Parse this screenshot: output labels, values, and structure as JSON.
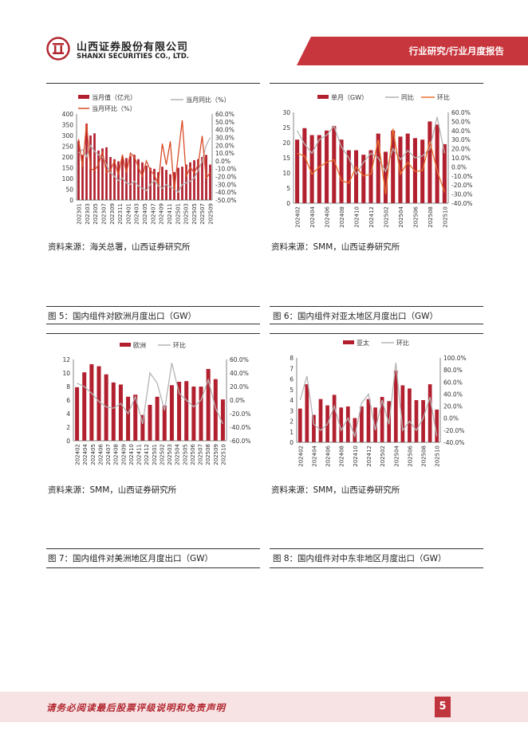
{
  "header": {
    "company_cn": "山西证券股份有限公司",
    "company_en": "SHANXI SECURITIES CO., LTD.",
    "report_type": "行业研究/行业月度报告"
  },
  "colors": {
    "brand": "#b22831",
    "bar": "#b2202f",
    "line_grey": "#b4b4b4",
    "line_orange": "#e8702a",
    "line_red": "#d84a26"
  },
  "figures": [
    {
      "source": "资料来源：海关总署，山西证券研究所",
      "caption": "图 5：国内组件对欧洲月度出口（GW）"
    },
    {
      "source": "资料来源：SMM，山西证券研究所",
      "caption": "图 6：国内组件对亚太地区月度出口（GW）"
    },
    {
      "source": "资料来源：SMM，山西证券研究所",
      "caption": "图 7：国内组件对美洲地区月度出口（GW）"
    },
    {
      "source": "资料来源：SMM，山西证券研究所",
      "caption": "图 8：国内组件对中东非地区月度出口（GW）"
    }
  ],
  "footer": {
    "disclaimer": "请务必阅读最后股票评级说明和免责声明",
    "page_number": "5"
  },
  "chart_data": [
    {
      "type": "bar",
      "legend": [
        "当月值（亿元）",
        "当月同比（%）",
        "当月环比（%）"
      ],
      "x_tick_labels": [
        "202301",
        "202303",
        "202305",
        "202307",
        "202309",
        "202311",
        "202401",
        "202403",
        "202405",
        "202407",
        "202409",
        "202411",
        "202501",
        "202503",
        "202505",
        "202507",
        "202509"
      ],
      "values": [
        275,
        210,
        355,
        300,
        310,
        230,
        240,
        245,
        200,
        190,
        180,
        200,
        195,
        205,
        210,
        190,
        175,
        160,
        150,
        145,
        130,
        155,
        140,
        120,
        130,
        150,
        155,
        165,
        175,
        185,
        190,
        200,
        210,
        165
      ],
      "series": [
        {
          "name": "当月同比（%）",
          "values": [
            10,
            15,
            5,
            20,
            12,
            8,
            5,
            -5,
            -15,
            -20,
            -25,
            -22,
            -28,
            -30,
            -26,
            -32,
            -35,
            -38,
            -30,
            -25,
            -32,
            -35,
            -30,
            -33,
            -36,
            -40,
            -30,
            -28,
            -26,
            -22,
            -12,
            0,
            20,
            30
          ]
        },
        {
          "name": "当月环比（%）",
          "values": [
            28,
            -8,
            48,
            -10,
            -12,
            -5,
            12,
            -15,
            -12,
            0,
            -18,
            8,
            -15,
            10,
            5,
            -8,
            -20,
            0,
            -12,
            -18,
            -30,
            22,
            -5,
            25,
            -38,
            8,
            52,
            -20,
            -8,
            -15,
            -5,
            32,
            -22,
            -15
          ]
        }
      ],
      "ylim": [
        0,
        400
      ],
      "y_ticks": [
        0,
        50,
        100,
        150,
        200,
        250,
        300,
        350,
        400
      ],
      "y2lim": [
        -50,
        60
      ],
      "y2_ticks": [
        "60.0%",
        "50.0%",
        "40.0%",
        "30.0%",
        "20.0%",
        "10.0%",
        "0.0%",
        "-10.0%",
        "-20.0%",
        "-30.0%",
        "-40.0%",
        "-50.0%"
      ]
    },
    {
      "type": "bar",
      "legend": [
        "单月（GW）",
        "同比",
        "环比"
      ],
      "x_tick_labels": [
        "202402",
        "202404",
        "202406",
        "202408",
        "202410",
        "202412",
        "202502",
        "202504",
        "202506",
        "202508",
        "202510"
      ],
      "values": [
        21,
        24.8,
        22.5,
        22.5,
        24,
        25.5,
        21,
        17.5,
        17.5,
        16,
        17.5,
        23,
        17,
        24,
        22,
        23,
        21.5,
        21,
        27,
        26,
        19.5
      ],
      "series": [
        {
          "name": "同比",
          "values": [
            40,
            25,
            15,
            30,
            35,
            45,
            22,
            10,
            -8,
            5,
            15,
            10,
            -5,
            20,
            8,
            18,
            10,
            12,
            20,
            55,
            15
          ]
        },
        {
          "name": "环比",
          "values": [
            15,
            12,
            -8,
            0,
            5,
            8,
            -15,
            -18,
            0,
            -10,
            -8,
            30,
            -30,
            42,
            -8,
            5,
            -5,
            -4,
            28,
            -4,
            -28
          ]
        }
      ],
      "ylim": [
        0,
        30
      ],
      "y_ticks": [
        0,
        5,
        10,
        15,
        20,
        25,
        30
      ],
      "y2lim": [
        -40,
        60
      ],
      "y2_ticks": [
        "60.0%",
        "50.0%",
        "40.0%",
        "30.0%",
        "20.0%",
        "10.0%",
        "0.0%",
        "-10.0%",
        "-20.0%",
        "-30.0%",
        "-40.0%"
      ]
    },
    {
      "type": "bar",
      "legend": [
        "欧洲",
        "环比"
      ],
      "x_tick_labels": [
        "202402",
        "202404",
        "202405",
        "202406",
        "202407",
        "202408",
        "202409",
        "202410",
        "202411",
        "202412",
        "202501",
        "202502",
        "202503",
        "202504",
        "202505",
        "202506",
        "202507",
        "202508",
        "202509",
        "202510"
      ],
      "values": [
        7.9,
        10.1,
        11.3,
        11,
        9.8,
        8.6,
        8.3,
        6.5,
        6.8,
        3.8,
        5.3,
        6.5,
        5.2,
        8.2,
        8.7,
        8.8,
        8,
        8,
        10.6,
        9.1,
        6.1
      ],
      "series": [
        {
          "name": "环比",
          "values": [
            25,
            20,
            10,
            -2,
            -10,
            -12,
            -5,
            -20,
            5,
            -35,
            40,
            25,
            -15,
            55,
            10,
            0,
            -10,
            0,
            30,
            -12,
            -35
          ]
        }
      ],
      "ylim": [
        0,
        12
      ],
      "y_ticks": [
        0,
        2,
        4,
        6,
        8,
        10,
        12
      ],
      "y2lim": [
        -60,
        60
      ],
      "y2_ticks": [
        "60.0%",
        "40.0%",
        "20.0%",
        "0.0%",
        "-20.0%",
        "-40.0%",
        "-60.0%"
      ]
    },
    {
      "type": "bar",
      "legend": [
        "亚太",
        "环比"
      ],
      "x_tick_labels": [
        "202402",
        "202404",
        "202406",
        "202408",
        "202410",
        "202412",
        "202502",
        "202504",
        "202506",
        "202508",
        "202510"
      ],
      "values": [
        3.2,
        5.5,
        2.6,
        4.1,
        3.5,
        4.5,
        3.3,
        3.4,
        2.3,
        3.4,
        4.1,
        3.3,
        4.3,
        3.9,
        6.8,
        5.4,
        5.1,
        4,
        4,
        5.5,
        3.1
      ],
      "series": [
        {
          "name": "环比",
          "values": [
            30,
            70,
            -10,
            -20,
            -10,
            20,
            -20,
            0,
            -30,
            25,
            40,
            -20,
            30,
            -10,
            92,
            -20,
            -5,
            -20,
            0,
            35,
            -30
          ]
        }
      ],
      "ylim": [
        0,
        8
      ],
      "y_ticks": [
        0,
        1,
        2,
        3,
        4,
        5,
        6,
        7,
        8
      ],
      "y2lim": [
        -40,
        100
      ],
      "y2_ticks": [
        "100.0%",
        "80.0%",
        "60.0%",
        "40.0%",
        "20.0%",
        "0.0%",
        "-20.0%",
        "-40.0%"
      ]
    }
  ]
}
